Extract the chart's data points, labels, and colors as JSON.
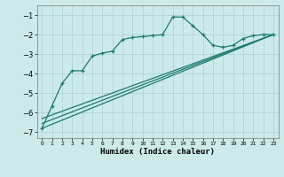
{
  "xlabel": "Humidex (Indice chaleur)",
  "bg_color": "#cdeaea",
  "grid_color": "#afd4d4",
  "line_color": "#1a7a6e",
  "xlim": [
    -0.5,
    23.5
  ],
  "ylim": [
    -7.3,
    -0.5
  ],
  "yticks": [
    -7,
    -6,
    -5,
    -4,
    -3,
    -2,
    -1
  ],
  "xticks": [
    0,
    1,
    2,
    3,
    4,
    5,
    6,
    7,
    8,
    9,
    10,
    11,
    12,
    13,
    14,
    15,
    16,
    17,
    18,
    19,
    20,
    21,
    22,
    23
  ],
  "curves": [
    {
      "x": [
        0,
        1,
        2,
        3,
        4,
        5,
        6,
        7,
        8,
        9,
        10,
        11,
        12,
        13,
        14,
        15,
        16,
        17,
        18,
        19,
        20,
        21,
        22,
        23
      ],
      "y": [
        -6.8,
        -5.65,
        -4.5,
        -3.85,
        -3.85,
        -3.1,
        -2.95,
        -2.85,
        -2.25,
        -2.15,
        -2.1,
        -2.05,
        -2.0,
        -1.1,
        -1.1,
        -1.55,
        -2.0,
        -2.55,
        -2.65,
        -2.55,
        -2.2,
        -2.05,
        -2.0,
        -2.0
      ],
      "markers": true
    },
    {
      "x": [
        0,
        23
      ],
      "y": [
        -6.8,
        -2.0
      ],
      "markers": false
    },
    {
      "x": [
        0,
        23
      ],
      "y": [
        -6.55,
        -2.0
      ],
      "markers": false
    },
    {
      "x": [
        0,
        23
      ],
      "y": [
        -6.3,
        -2.0
      ],
      "markers": false
    }
  ]
}
